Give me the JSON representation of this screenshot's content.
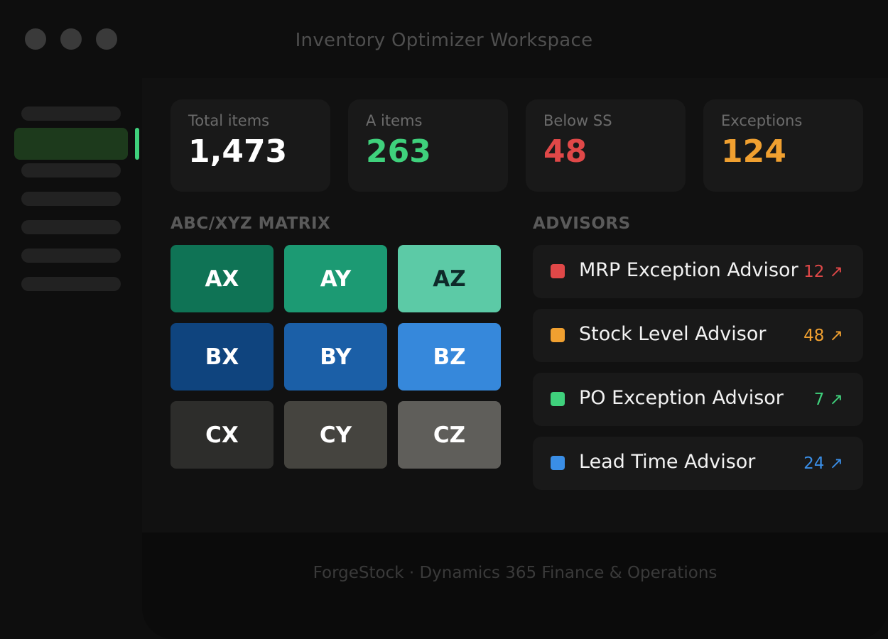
{
  "window": {
    "title": "Inventory Optimizer Workspace"
  },
  "kpis": [
    {
      "label": "Total items",
      "value": "1,473",
      "color": "#ffffff"
    },
    {
      "label": "A items",
      "value": "263",
      "color": "#3fd17c"
    },
    {
      "label": "Below SS",
      "value": "48",
      "color": "#e04848"
    },
    {
      "label": "Exceptions",
      "value": "124",
      "color": "#f0a030"
    }
  ],
  "matrix": {
    "title": "ABC/XYZ MATRIX",
    "cells": [
      {
        "label": "AX",
        "color": "#0f7355"
      },
      {
        "label": "AY",
        "color": "#1c9a73"
      },
      {
        "label": "AZ",
        "color": "#5ccaa6"
      },
      {
        "label": "BX",
        "color": "#0f447e"
      },
      {
        "label": "BY",
        "color": "#1b5fa7"
      },
      {
        "label": "BZ",
        "color": "#3688db"
      },
      {
        "label": "CX",
        "color": "#2d2d2b"
      },
      {
        "label": "CY",
        "color": "#45443f"
      },
      {
        "label": "CZ",
        "color": "#5f5e5a"
      }
    ]
  },
  "advisors": {
    "title": "ADVISORS",
    "items": [
      {
        "name": "MRP Exception Advisor",
        "count": "12 ↗",
        "color": "#e04848"
      },
      {
        "name": "Stock Level Advisor",
        "count": "48 ↗",
        "color": "#f0a030"
      },
      {
        "name": "PO Exception Advisor",
        "count": "7 ↗",
        "color": "#3fd17c"
      },
      {
        "name": "Lead Time Advisor",
        "count": "24 ↗",
        "color": "#3a8ee6"
      }
    ]
  },
  "footer": {
    "text": "ForgeStock · Dynamics 365 Finance & Operations"
  }
}
